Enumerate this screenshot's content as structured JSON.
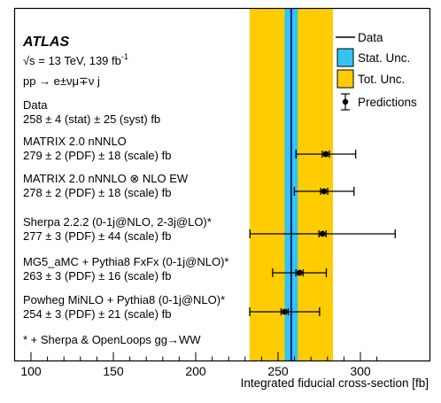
{
  "chart_data": {
    "type": "errorbar",
    "experiment": "ATLAS",
    "energy_line": "√s = 13 TeV, 139 fb",
    "energy_sup": "-1",
    "process": "pp → e±νμ∓ν j",
    "xlabel": "Integrated fiducial cross-section [fb]",
    "xlim": [
      90,
      312
    ],
    "xticks": [
      100,
      150,
      200,
      250,
      300
    ],
    "footnote": "* + Sherpa & OpenLoops gg→WW",
    "data": {
      "label": "Data",
      "value_line": "258 ± 4 (stat) ± 25 (syst) fb",
      "value": 258,
      "stat": 4,
      "total": 25.3
    },
    "predictions": [
      {
        "name": "MATRIX 2.0 nNNLO",
        "value_line": "279 ± 2 (PDF) ± 18 (scale) fb",
        "value": 279,
        "err": 18.1
      },
      {
        "name": "MATRIX 2.0 nNNLO ⊗ NLO EW",
        "value_line": "278 ± 2 (PDF) ± 18 (scale) fb",
        "value": 278,
        "err": 18.1
      },
      {
        "name": "Sherpa 2.2.2 (0-1j@NLO, 2-3j@LO)*",
        "value_line": "277 ± 3 (PDF) ± 44 (scale) fb",
        "value": 277,
        "err": 44.1
      },
      {
        "name": "MG5_aMC + Pythia8 FxFx (0-1j@NLO)*",
        "value_line": "263 ± 3 (PDF) ± 16 (scale) fb",
        "value": 263,
        "err": 16.3
      },
      {
        "name": "Powheg MiNLO + Pythia8 (0-1j@NLO)*",
        "value_line": "254 ± 3 (PDF) ± 21 (scale) fb",
        "value": 254,
        "err": 21.2
      }
    ],
    "legend": {
      "position": "top-right",
      "entries": [
        "Data",
        "Stat. Unc.",
        "Tot. Unc.",
        "Predictions"
      ]
    },
    "colors": {
      "stat_band": "#33c4f0",
      "tot_band": "#ffcc00",
      "data_line": "#000080"
    }
  }
}
